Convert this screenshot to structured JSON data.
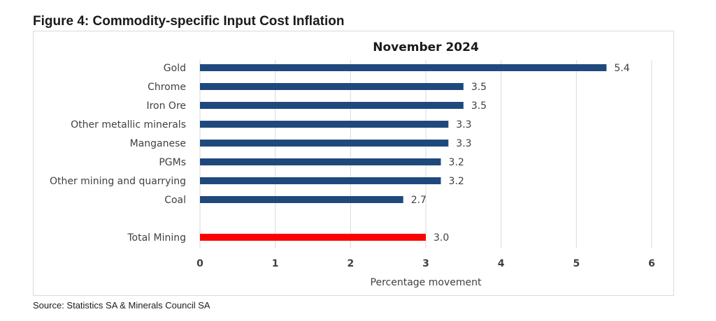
{
  "figure": {
    "title": "Figure 4: Commodity-specific Input Cost Inflation",
    "source": "Source: Statistics SA & Minerals Council SA"
  },
  "chart_data": {
    "type": "bar",
    "orientation": "horizontal",
    "title": "November 2024",
    "xlabel": "Percentage movement",
    "ylabel": "",
    "categories": [
      "Gold",
      "Chrome",
      "Iron Ore",
      "Other metallic minerals",
      "Manganese",
      "PGMs",
      "Other mining and quarrying",
      "Coal",
      "Total Mining"
    ],
    "values": [
      5.4,
      3.5,
      3.5,
      3.3,
      3.3,
      3.2,
      3.2,
      2.7,
      3.0
    ],
    "data_labels": [
      "5.4",
      "3.5",
      "3.5",
      "3.3",
      "3.3",
      "3.2",
      "3.2",
      "2.7",
      "3.0"
    ],
    "highlight_category": "Total Mining",
    "xlim": [
      0,
      6
    ],
    "xticks": [
      "0",
      "1",
      "2",
      "3",
      "4",
      "5",
      "6"
    ],
    "grid": "vertical",
    "legend": "none",
    "colors": {
      "bar": "#1f497d",
      "highlight": "#ff0000",
      "grid": "#d9d9d9",
      "text": "#404040"
    }
  }
}
